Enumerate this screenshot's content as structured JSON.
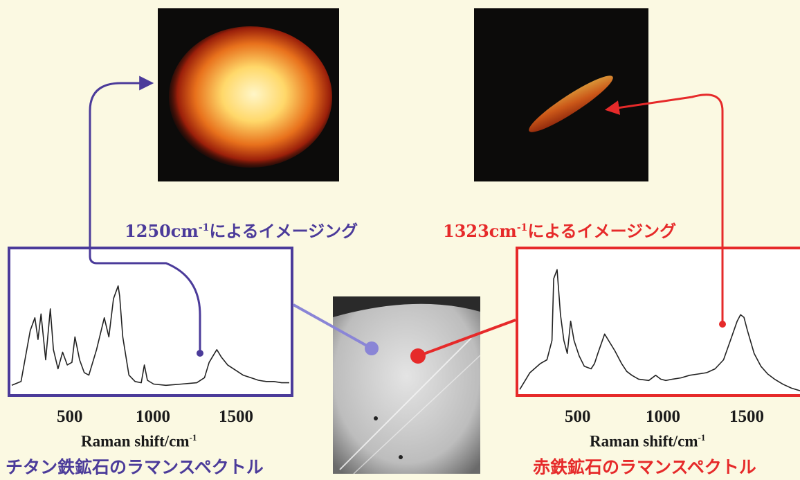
{
  "left_image_caption": {
    "prefix": "1250cm",
    "sup": "-1",
    "suffix": "によるイメージング"
  },
  "right_image_caption": {
    "prefix": "1323cm",
    "sup": "-1",
    "suffix": "によるイメージング"
  },
  "colors": {
    "left_accent": "#4b3b9a",
    "right_accent": "#e62a2a",
    "background": "#fbf9e2",
    "spectrum_line": "#222222",
    "micrograph_mid": "#c9c9c9"
  },
  "chart_data": [
    {
      "type": "line",
      "title": "チタン鉄鉱石のラマンスペクトル",
      "xlabel": "Raman shift/cm",
      "xlabel_sup": "-1",
      "ylabel": "",
      "x_ticks": [
        "500",
        "1000",
        "1500"
      ],
      "xlim": [
        0,
        1800
      ],
      "ylim": [
        0,
        100
      ],
      "marked_peak": 1250,
      "series": [
        {
          "x": [
            0,
            60,
            120,
            150,
            170,
            190,
            220,
            250,
            270,
            300,
            330,
            360,
            390,
            410,
            440,
            470,
            500,
            550,
            600,
            630,
            660,
            690,
            700,
            720,
            760,
            800,
            840,
            860,
            880,
            920,
            1000,
            1100,
            1200,
            1250,
            1280,
            1310,
            1330,
            1360,
            1400,
            1450,
            1500,
            1550,
            1600,
            1650,
            1700,
            1750,
            1800
          ],
          "y": [
            2,
            5,
            45,
            55,
            38,
            58,
            22,
            62,
            30,
            15,
            28,
            18,
            20,
            40,
            22,
            12,
            10,
            30,
            55,
            40,
            70,
            80,
            72,
            40,
            10,
            5,
            4,
            18,
            6,
            3,
            2,
            3,
            4,
            8,
            20,
            26,
            30,
            24,
            18,
            14,
            10,
            8,
            6,
            5,
            5,
            4,
            4
          ]
        }
      ]
    },
    {
      "type": "line",
      "title": "赤鉄鉱石のラマンスペクトル",
      "xlabel": "Raman shift/cm",
      "xlabel_sup": "-1",
      "ylabel": "",
      "x_ticks": [
        "500",
        "1000",
        "1500"
      ],
      "xlim": [
        0,
        1650
      ],
      "ylim": [
        0,
        100
      ],
      "marked_peak": 1323,
      "series": [
        {
          "x": [
            0,
            60,
            120,
            160,
            190,
            200,
            220,
            240,
            260,
            280,
            300,
            320,
            350,
            380,
            420,
            440,
            460,
            500,
            560,
            600,
            630,
            660,
            700,
            760,
            800,
            830,
            860,
            900,
            950,
            1000,
            1050,
            1100,
            1150,
            1200,
            1240,
            1280,
            1300,
            1320,
            1340,
            1380,
            1420,
            1460,
            1500,
            1550,
            1600,
            1650
          ],
          "y": [
            2,
            15,
            22,
            25,
            40,
            88,
            95,
            60,
            40,
            30,
            55,
            40,
            28,
            20,
            18,
            22,
            30,
            45,
            32,
            22,
            16,
            13,
            10,
            9,
            13,
            10,
            9,
            10,
            11,
            13,
            14,
            15,
            18,
            25,
            40,
            55,
            60,
            58,
            48,
            30,
            20,
            14,
            10,
            6,
            3,
            1
          ]
        }
      ]
    }
  ]
}
